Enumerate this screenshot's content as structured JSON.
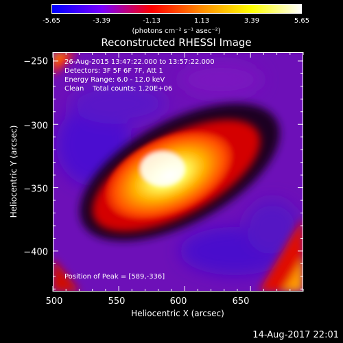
{
  "colorbar": {
    "ticks": [
      "-5.65",
      "-3.39",
      "-1.13",
      "1.13",
      "3.39",
      "5.65"
    ],
    "unit": "(photons cm⁻² s⁻¹ asec⁻²)",
    "colors": [
      "#0000ff",
      "#7a00ff",
      "#ff0000",
      "#ff8c00",
      "#ffff00",
      "#ffffff"
    ]
  },
  "title": "Reconstructed RHESSI Image",
  "annotations": {
    "time": "26-Aug-2015 13:47:22.000 to 13:57:22.000",
    "detectors": "Detectors: 3F 5F 6F 7F, Att 1",
    "energy": "Energy Range: 6.0 - 12.0 keV",
    "clean": "Clean    Total counts: 1.20E+06",
    "peak": "Position of Peak = [589,-336]"
  },
  "footer": {
    "timestamp": "14-Aug-2017 22:01"
  },
  "chart_data": {
    "type": "heatmap",
    "title": "Reconstructed RHESSI Image",
    "xlabel": "Heliocentric X (arcsec)",
    "ylabel": "Heliocentric Y (arcsec)",
    "xlim": [
      500,
      690
    ],
    "ylim": [
      -432,
      -243
    ],
    "x_ticks": [
      500,
      550,
      600,
      650
    ],
    "y_ticks": [
      -250,
      -300,
      -350,
      -400
    ],
    "x_tick_labels": [
      "500",
      "550",
      "600",
      "650"
    ],
    "y_tick_labels": [
      "−250",
      "−300",
      "−350",
      "−400"
    ],
    "color_range": [
      -5.65,
      5.65
    ],
    "peak": [
      589,
      -336
    ]
  }
}
